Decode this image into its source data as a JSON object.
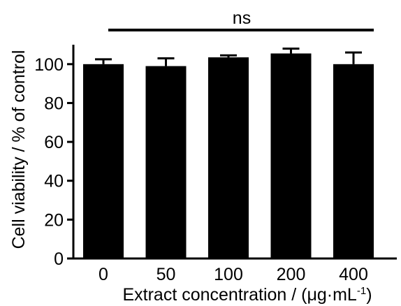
{
  "chart_data": {
    "type": "bar",
    "categories": [
      "0",
      "50",
      "100",
      "200",
      "400"
    ],
    "values": [
      100,
      99,
      103.5,
      105.5,
      100
    ],
    "error_upper": [
      102.5,
      103,
      104.5,
      108,
      106
    ],
    "ylim": [
      0,
      110
    ],
    "yticks": [
      0,
      20,
      40,
      60,
      80,
      100
    ],
    "ylabel": "Cell viability / % of control",
    "xlabel_prefix": "Extract concentration / (μg·mL",
    "xlabel_superscript": "-1",
    "xlabel_suffix": ")",
    "annotation": "ns",
    "bar_color": "#000000",
    "grid": false
  }
}
